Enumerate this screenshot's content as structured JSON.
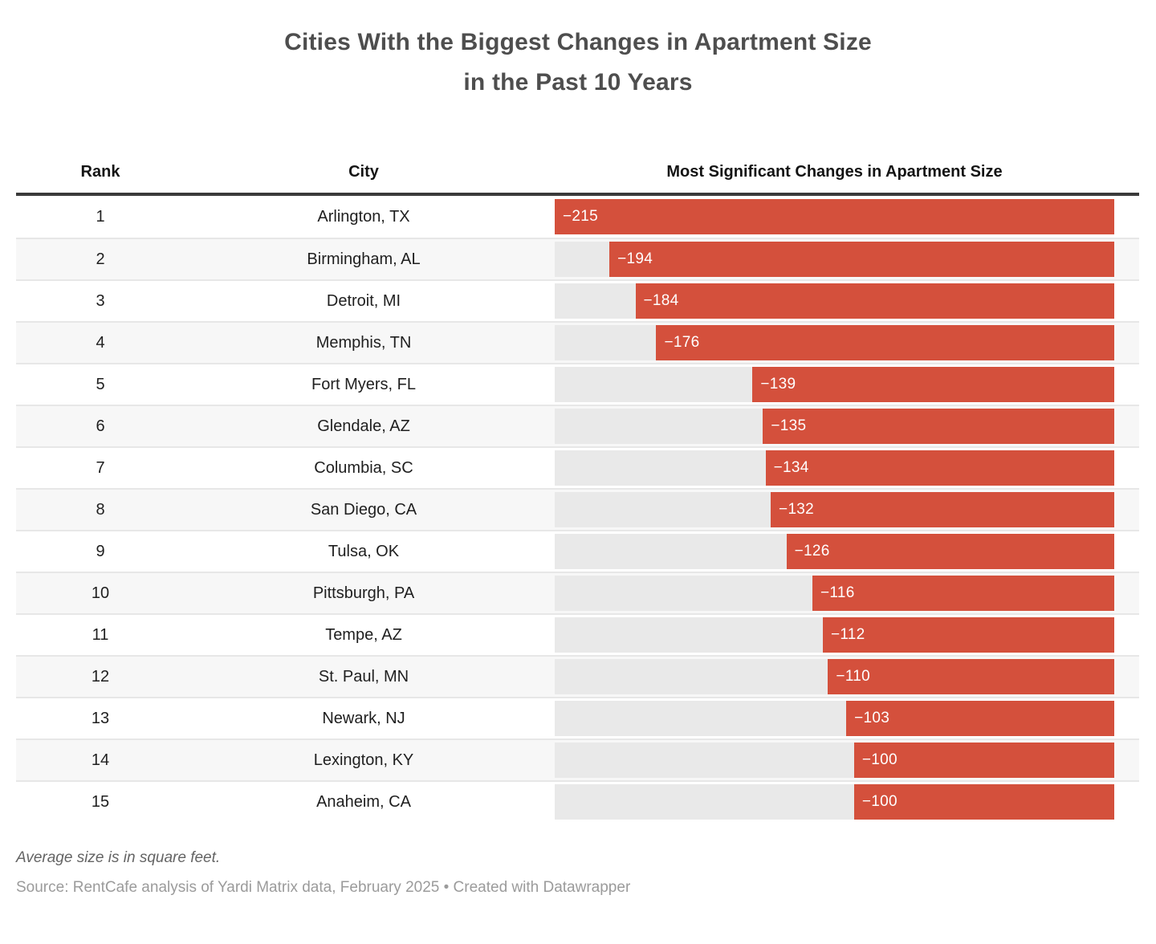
{
  "title": "Cities With the Biggest Changes in Apartment Size\nin the Past 10 Years",
  "table": {
    "columns": [
      "Rank",
      "City",
      "Most Significant Changes in Apartment Size"
    ]
  },
  "chart_data": {
    "type": "bar",
    "title": "Cities With the Biggest Changes in Apartment Size in the Past 10 Years",
    "orientation": "horizontal",
    "value_axis_max_abs": 215,
    "bar_anchor": "right",
    "bar_color": "#d4503c",
    "track_color": "#e9e9e9",
    "columns": [
      "Rank",
      "City",
      "Most Significant Changes in Apartment Size"
    ],
    "rows": [
      {
        "rank": "1",
        "city": "Arlington, TX",
        "value": -215,
        "label": "−215"
      },
      {
        "rank": "2",
        "city": "Birmingham, AL",
        "value": -194,
        "label": "−194"
      },
      {
        "rank": "3",
        "city": "Detroit, MI",
        "value": -184,
        "label": "−184"
      },
      {
        "rank": "4",
        "city": "Memphis, TN",
        "value": -176,
        "label": "−176"
      },
      {
        "rank": "5",
        "city": "Fort Myers, FL",
        "value": -139,
        "label": "−139"
      },
      {
        "rank": "6",
        "city": "Glendale, AZ",
        "value": -135,
        "label": "−135"
      },
      {
        "rank": "7",
        "city": "Columbia, SC",
        "value": -134,
        "label": "−134"
      },
      {
        "rank": "8",
        "city": "San Diego, CA",
        "value": -132,
        "label": "−132"
      },
      {
        "rank": "9",
        "city": "Tulsa, OK",
        "value": -126,
        "label": "−126"
      },
      {
        "rank": "10",
        "city": "Pittsburgh, PA",
        "value": -116,
        "label": "−116"
      },
      {
        "rank": "11",
        "city": "Tempe, AZ",
        "value": -112,
        "label": "−112"
      },
      {
        "rank": "12",
        "city": "St. Paul, MN",
        "value": -110,
        "label": "−110"
      },
      {
        "rank": "13",
        "city": "Newark, NJ",
        "value": -103,
        "label": "−103"
      },
      {
        "rank": "14",
        "city": "Lexington, KY",
        "value": -100,
        "label": "−100"
      },
      {
        "rank": "15",
        "city": "Anaheim, CA",
        "value": -100,
        "label": "−100"
      }
    ]
  },
  "footer": {
    "note": "Average size is in square feet.",
    "source": "Source: RentCafe analysis of Yardi Matrix data, February 2025 • Created with Datawrapper"
  }
}
